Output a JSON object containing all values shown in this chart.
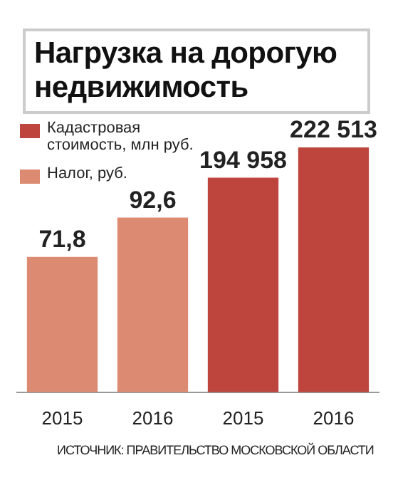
{
  "chart_data": {
    "type": "bar",
    "title": "Нагрузка на дорогую недвижимость",
    "categories": [
      "2015",
      "2016",
      "2015",
      "2016"
    ],
    "series": [
      {
        "name": "Кадастровая стоимость, млн руб.",
        "color": "#bd453e",
        "axis": "y2",
        "values": [
          null,
          null,
          194958,
          222513
        ],
        "value_labels": [
          null,
          null,
          "194 958",
          "222 513"
        ]
      },
      {
        "name": "Налог, руб.",
        "color": "#dc8a72",
        "axis": "y",
        "values": [
          71.8,
          92.6,
          null,
          null
        ],
        "value_labels": [
          "71,8",
          "92,6",
          null,
          null
        ]
      }
    ],
    "ylim": [
      0,
      140
    ],
    "y2lim": [
      0,
      240000
    ],
    "legend": "top left",
    "grid": false,
    "tick_labels": "x",
    "annotations": [
      "ИСТОЧНИК: ПРАВИТЕЛЬСТВО МОСКОВСКОЙ ОБЛАСТИ"
    ]
  }
}
